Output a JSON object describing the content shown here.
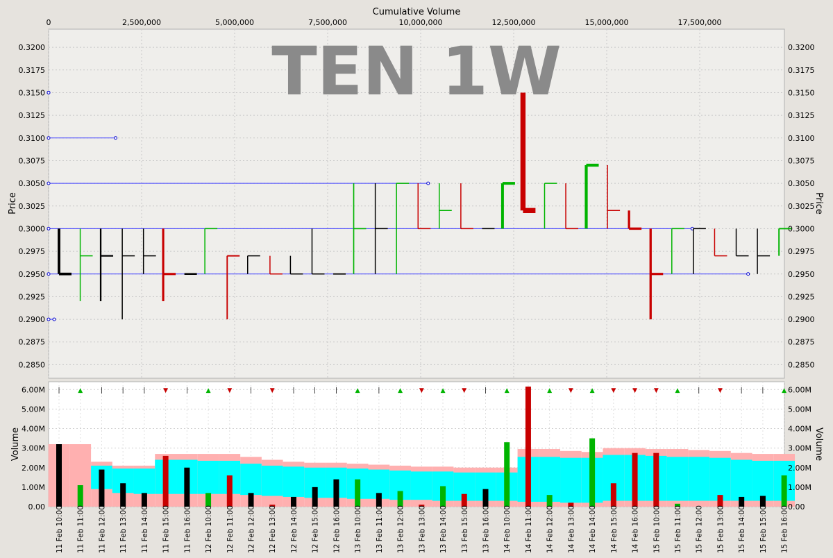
{
  "chart_data": [
    {
      "type": "ohlc",
      "title": "TEN 1W",
      "top_axis_label": "Cumulative Volume",
      "top_axis_ticks": [
        "0",
        "2,500,000",
        "5,000,000",
        "7,500,000",
        "10,000,000",
        "12,500,000",
        "15,000,000",
        "17,500,000"
      ],
      "top_axis_values": [
        0,
        2500000,
        5000000,
        7500000,
        10000000,
        12500000,
        15000000,
        17500000
      ],
      "ylabel": "Price",
      "ylim": [
        0.2835,
        0.322
      ],
      "y_ticks": [
        "0.2850",
        "0.2875",
        "0.2900",
        "0.2925",
        "0.2950",
        "0.2975",
        "0.3000",
        "0.3025",
        "0.3050",
        "0.3075",
        "0.3100",
        "0.3125",
        "0.3150",
        "0.3175",
        "0.3200"
      ],
      "colors": {
        "up": "#00b400",
        "down": "#c80000",
        "flat": "#000000",
        "level_line": "#4444ff"
      },
      "levels": [
        {
          "price": 0.315,
          "x_from": 0,
          "x_to": 0
        },
        {
          "price": 0.31,
          "x_from": 0,
          "x_to": 1.8
        },
        {
          "price": 0.305,
          "x_from": 0,
          "x_to": 10.2
        },
        {
          "price": 0.3,
          "x_from": 0,
          "x_to": 17.3
        },
        {
          "price": 0.295,
          "x_from": 0,
          "x_to": 18.8
        },
        {
          "price": 0.29,
          "x_from": 0,
          "x_to": 0.15
        }
      ],
      "bars": [
        {
          "cum_vol_m": 0.28,
          "open": 0.295,
          "high": 0.3,
          "low": 0.295,
          "close": 0.295,
          "dir": "flat"
        },
        {
          "cum_vol_m": 0.85,
          "open": 0.297,
          "high": 0.3,
          "low": 0.292,
          "close": 0.297,
          "dir": "up"
        },
        {
          "cum_vol_m": 1.4,
          "open": 0.297,
          "high": 0.3,
          "low": 0.292,
          "close": 0.297,
          "dir": "flat"
        },
        {
          "cum_vol_m": 1.98,
          "open": 0.297,
          "high": 0.3,
          "low": 0.29,
          "close": 0.297,
          "dir": "flat"
        },
        {
          "cum_vol_m": 2.55,
          "open": 0.297,
          "high": 0.3,
          "low": 0.295,
          "close": 0.297,
          "dir": "flat"
        },
        {
          "cum_vol_m": 3.08,
          "open": 0.295,
          "high": 0.3,
          "low": 0.292,
          "close": 0.295,
          "dir": "down"
        },
        {
          "cum_vol_m": 3.65,
          "open": 0.295,
          "high": 0.295,
          "low": 0.295,
          "close": 0.295,
          "dir": "flat"
        },
        {
          "cum_vol_m": 4.2,
          "open": 0.3,
          "high": 0.3,
          "low": 0.295,
          "close": 0.3,
          "dir": "up"
        },
        {
          "cum_vol_m": 4.8,
          "open": 0.297,
          "high": 0.297,
          "low": 0.29,
          "close": 0.297,
          "dir": "down"
        },
        {
          "cum_vol_m": 5.35,
          "open": 0.297,
          "high": 0.297,
          "low": 0.295,
          "close": 0.297,
          "dir": "flat"
        },
        {
          "cum_vol_m": 5.95,
          "open": 0.295,
          "high": 0.297,
          "low": 0.295,
          "close": 0.295,
          "dir": "down"
        },
        {
          "cum_vol_m": 6.5,
          "open": 0.295,
          "high": 0.297,
          "low": 0.295,
          "close": 0.295,
          "dir": "flat"
        },
        {
          "cum_vol_m": 7.08,
          "open": 0.295,
          "high": 0.3,
          "low": 0.295,
          "close": 0.295,
          "dir": "flat"
        },
        {
          "cum_vol_m": 7.65,
          "open": 0.295,
          "high": 0.295,
          "low": 0.295,
          "close": 0.295,
          "dir": "flat"
        },
        {
          "cum_vol_m": 8.2,
          "open": 0.3,
          "high": 0.305,
          "low": 0.295,
          "close": 0.3,
          "dir": "up"
        },
        {
          "cum_vol_m": 8.78,
          "open": 0.3,
          "high": 0.305,
          "low": 0.295,
          "close": 0.3,
          "dir": "flat"
        },
        {
          "cum_vol_m": 9.35,
          "open": 0.305,
          "high": 0.305,
          "low": 0.295,
          "close": 0.305,
          "dir": "up"
        },
        {
          "cum_vol_m": 9.93,
          "open": 0.3,
          "high": 0.305,
          "low": 0.3,
          "close": 0.3,
          "dir": "down"
        },
        {
          "cum_vol_m": 10.5,
          "open": 0.302,
          "high": 0.305,
          "low": 0.3,
          "close": 0.302,
          "dir": "up"
        },
        {
          "cum_vol_m": 11.08,
          "open": 0.3,
          "high": 0.305,
          "low": 0.3,
          "close": 0.3,
          "dir": "down"
        },
        {
          "cum_vol_m": 11.65,
          "open": 0.3,
          "high": 0.3,
          "low": 0.3,
          "close": 0.3,
          "dir": "flat"
        },
        {
          "cum_vol_m": 12.2,
          "open": 0.305,
          "high": 0.305,
          "low": 0.3,
          "close": 0.305,
          "dir": "up"
        },
        {
          "cum_vol_m": 12.75,
          "open": 0.302,
          "high": 0.315,
          "low": 0.302,
          "close": 0.302,
          "dir": "down"
        },
        {
          "cum_vol_m": 13.33,
          "open": 0.305,
          "high": 0.305,
          "low": 0.3,
          "close": 0.305,
          "dir": "up"
        },
        {
          "cum_vol_m": 13.9,
          "open": 0.3,
          "high": 0.305,
          "low": 0.3,
          "close": 0.3,
          "dir": "down"
        },
        {
          "cum_vol_m": 14.45,
          "open": 0.307,
          "high": 0.307,
          "low": 0.3,
          "close": 0.307,
          "dir": "up"
        },
        {
          "cum_vol_m": 15.02,
          "open": 0.302,
          "high": 0.307,
          "low": 0.3,
          "close": 0.302,
          "dir": "down"
        },
        {
          "cum_vol_m": 15.6,
          "open": 0.3,
          "high": 0.302,
          "low": 0.3,
          "close": 0.3,
          "dir": "down"
        },
        {
          "cum_vol_m": 16.18,
          "open": 0.295,
          "high": 0.3,
          "low": 0.29,
          "close": 0.295,
          "dir": "down"
        },
        {
          "cum_vol_m": 16.75,
          "open": 0.3,
          "high": 0.3,
          "low": 0.295,
          "close": 0.3,
          "dir": "up"
        },
        {
          "cum_vol_m": 17.33,
          "open": 0.3,
          "high": 0.3,
          "low": 0.295,
          "close": 0.3,
          "dir": "flat"
        },
        {
          "cum_vol_m": 17.9,
          "open": 0.297,
          "high": 0.3,
          "low": 0.297,
          "close": 0.297,
          "dir": "down"
        },
        {
          "cum_vol_m": 18.48,
          "open": 0.297,
          "high": 0.3,
          "low": 0.297,
          "close": 0.297,
          "dir": "flat"
        },
        {
          "cum_vol_m": 19.05,
          "open": 0.297,
          "high": 0.3,
          "low": 0.295,
          "close": 0.297,
          "dir": "flat"
        },
        {
          "cum_vol_m": 19.63,
          "open": 0.3,
          "high": 0.3,
          "low": 0.297,
          "close": 0.3,
          "dir": "up"
        }
      ]
    },
    {
      "type": "bar",
      "ylabel": "Volume",
      "ylim": [
        0,
        6.4
      ],
      "y_ticks": [
        "0.00",
        "1.00M",
        "2.00M",
        "3.00M",
        "4.00M",
        "5.00M",
        "6.00M"
      ],
      "y_tick_values": [
        0,
        1,
        2,
        3,
        4,
        5,
        6
      ],
      "categories": [
        "11 Feb 10:00",
        "11 Feb 11:00",
        "11 Feb 12:00",
        "11 Feb 13:00",
        "11 Feb 14:00",
        "11 Feb 15:00",
        "11 Feb 16:00",
        "12 Feb 10:00",
        "12 Feb 11:00",
        "12 Feb 12:00",
        "12 Feb 13:00",
        "12 Feb 14:00",
        "12 Feb 15:00",
        "12 Feb 16:00",
        "13 Feb 10:00",
        "13 Feb 11:00",
        "13 Feb 12:00",
        "13 Feb 13:00",
        "13 Feb 14:00",
        "13 Feb 15:00",
        "13 Feb 16:00",
        "14 Feb 10:00",
        "14 Feb 11:00",
        "14 Feb 12:00",
        "14 Feb 13:00",
        "14 Feb 14:00",
        "14 Feb 15:00",
        "14 Feb 16:00",
        "15 Feb 10:00",
        "15 Feb 11:00",
        "15 Feb 12:00",
        "15 Feb 13:00",
        "15 Feb 14:00",
        "15 Feb 15:00",
        "15 Feb 16:00"
      ],
      "volumes_m": [
        3.2,
        1.1,
        1.9,
        1.2,
        0.7,
        2.6,
        2.0,
        0.7,
        1.6,
        0.7,
        0.1,
        0.5,
        1.0,
        1.4,
        1.4,
        0.7,
        0.8,
        0.1,
        1.05,
        0.65,
        0.9,
        3.3,
        6.15,
        0.6,
        0.2,
        3.5,
        1.2,
        2.75,
        2.75,
        0.15,
        0.0,
        0.6,
        0.5,
        0.55,
        1.6
      ],
      "directions": [
        "flat",
        "up",
        "flat",
        "flat",
        "flat",
        "down",
        "flat",
        "up",
        "down",
        "flat",
        "down",
        "flat",
        "flat",
        "flat",
        "up",
        "flat",
        "up",
        "down",
        "up",
        "down",
        "flat",
        "up",
        "down",
        "up",
        "down",
        "up",
        "down",
        "down",
        "down",
        "up",
        "flat",
        "down",
        "flat",
        "flat",
        "up"
      ],
      "band_upper_m": [
        3.2,
        3.2,
        2.3,
        2.1,
        2.1,
        2.7,
        2.7,
        2.7,
        2.7,
        2.55,
        2.4,
        2.3,
        2.25,
        2.25,
        2.2,
        2.15,
        2.1,
        2.05,
        2.05,
        2.0,
        2.0,
        2.0,
        2.95,
        2.95,
        2.85,
        2.8,
        3.0,
        3.0,
        2.95,
        2.95,
        2.9,
        2.85,
        2.75,
        2.7,
        2.7
      ],
      "band_mid_upper_m": [
        0,
        0,
        2.1,
        1.95,
        1.95,
        2.4,
        2.4,
        2.35,
        2.35,
        2.2,
        2.1,
        2.05,
        2.0,
        2.0,
        1.95,
        1.9,
        1.85,
        1.8,
        1.8,
        1.75,
        1.75,
        1.75,
        2.55,
        2.55,
        2.5,
        2.5,
        2.65,
        2.65,
        2.6,
        2.55,
        2.55,
        2.5,
        2.4,
        2.35,
        2.35
      ],
      "band_mid_lower_m": [
        0,
        0,
        0.9,
        0.7,
        0.65,
        0.65,
        0.65,
        0.65,
        0.65,
        0.6,
        0.55,
        0.5,
        0.45,
        0.45,
        0.4,
        0.4,
        0.35,
        0.35,
        0.3,
        0.3,
        0.3,
        0.3,
        0.25,
        0.25,
        0.2,
        0.2,
        0.3,
        0.3,
        0.3,
        0.3,
        0.3,
        0.3,
        0.3,
        0.3,
        0.3
      ],
      "band_lower_m": [
        0,
        0,
        0.45,
        0.35,
        0.3,
        0.3,
        0.3,
        0.3,
        0.3,
        0.25,
        0.25,
        0.2,
        0.2,
        0.2,
        0.15,
        0.15,
        0.1,
        0.1,
        0.1,
        0.05,
        0.05,
        0.05,
        0.05,
        0.05,
        0.05,
        0.05,
        0.1,
        0.1,
        0.1,
        0.1,
        0.1,
        0.1,
        0.1,
        0.1,
        0.1
      ],
      "colors": {
        "up": "#00b400",
        "down": "#c80000",
        "flat": "#000000",
        "band_outer": "#ffb0b0",
        "band_inner": "#00ffff"
      }
    }
  ]
}
